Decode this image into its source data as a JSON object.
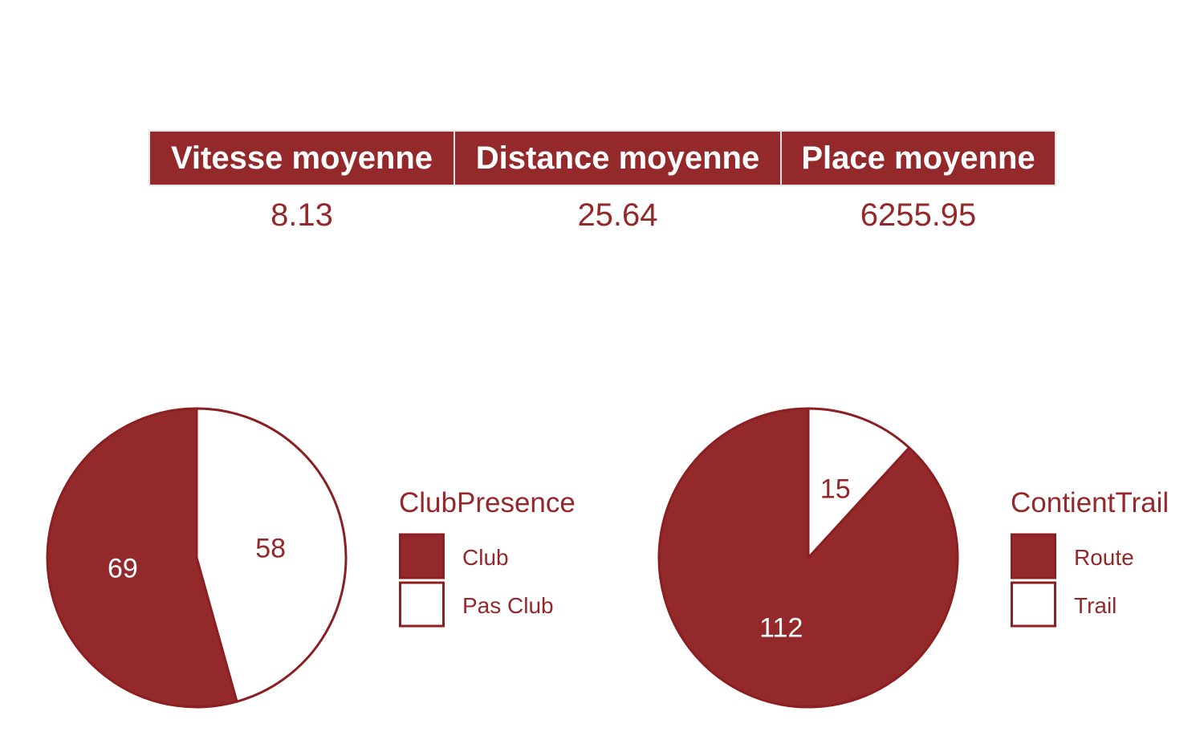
{
  "colors": {
    "accent": "#93292b",
    "outline": "#8b1f22",
    "background": "#ffffff"
  },
  "summary": {
    "headers": [
      "Vitesse moyenne",
      "Distance moyenne",
      "Place moyenne"
    ],
    "values": [
      "8.13",
      "25.64",
      "6255.95"
    ]
  },
  "chart_data": [
    {
      "type": "pie",
      "legend_title": "ClubPresence",
      "categories": [
        "Club",
        "Pas Club"
      ],
      "values": [
        69,
        58
      ],
      "colors": [
        "#93292b",
        "#ffffff"
      ],
      "legend": "right"
    },
    {
      "type": "pie",
      "legend_title": "ContientTrail",
      "categories": [
        "Route",
        "Trail"
      ],
      "values": [
        112,
        15
      ],
      "colors": [
        "#93292b",
        "#ffffff"
      ],
      "legend": "right"
    }
  ]
}
